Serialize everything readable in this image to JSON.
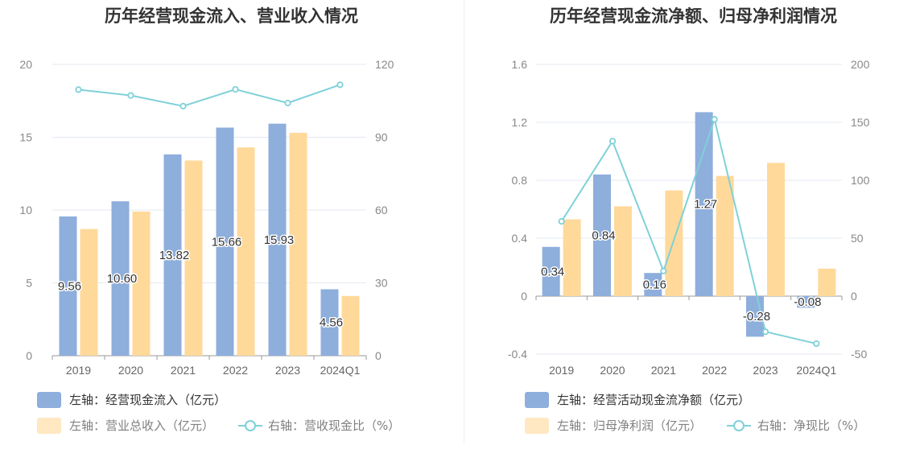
{
  "colors": {
    "bar_blue": "#8EAEDC",
    "bar_orange": "#FFD99A",
    "line_teal": "#7FD1D8",
    "grid": "#E3E8F2",
    "axis": "#999999"
  },
  "chart_data": [
    {
      "type": "bar",
      "title": "历年经营现金流入、营业收入情况",
      "categories": [
        "2019",
        "2020",
        "2021",
        "2022",
        "2023",
        "2024Q1"
      ],
      "left_axis": {
        "ticks": [
          "0",
          "5",
          "10",
          "15",
          "20"
        ],
        "ylim": [
          0,
          20
        ]
      },
      "right_axis": {
        "ticks": [
          "0",
          "30",
          "60",
          "90",
          "120"
        ],
        "ylim": [
          0,
          120
        ]
      },
      "series": [
        {
          "name": "左轴：经营现金流入（亿元）",
          "axis": "left",
          "type": "bar",
          "values": [
            9.56,
            10.6,
            13.82,
            15.66,
            15.93,
            4.56
          ],
          "labels": [
            "9.56",
            "10.60",
            "13.82",
            "15.66",
            "15.93",
            "4.56"
          ]
        },
        {
          "name": "左轴：营业总收入（亿元）",
          "axis": "left",
          "type": "bar",
          "values": [
            8.7,
            9.9,
            13.4,
            14.3,
            15.3,
            4.1
          ]
        },
        {
          "name": "右轴：营收现金比（%）",
          "axis": "right",
          "type": "line",
          "values": [
            109.6,
            107.2,
            102.8,
            109.7,
            104.1,
            111.6
          ]
        }
      ],
      "grid": true,
      "legend_placement": "bottom-left"
    },
    {
      "type": "bar",
      "title": "历年经营现金流净额、归母净利润情况",
      "categories": [
        "2019",
        "2020",
        "2021",
        "2022",
        "2023",
        "2024Q1"
      ],
      "left_axis": {
        "ticks": [
          "-0.4",
          "0",
          "0.4",
          "0.8",
          "1.2",
          "1.6"
        ],
        "ylim": [
          -0.4,
          1.6
        ]
      },
      "right_axis": {
        "ticks": [
          "-50",
          "0",
          "50",
          "100",
          "150",
          "200"
        ],
        "ylim": [
          -50,
          200
        ]
      },
      "series": [
        {
          "name": "左轴：经营活动现金流净额（亿元）",
          "axis": "left",
          "type": "bar",
          "values": [
            0.34,
            0.84,
            0.16,
            1.27,
            -0.28,
            -0.08
          ],
          "labels": [
            "0.34",
            "0.84",
            "0.16",
            "1.27",
            "-0.28",
            "-0.08"
          ]
        },
        {
          "name": "左轴：归母净利润（亿元）",
          "axis": "left",
          "type": "bar",
          "values": [
            0.53,
            0.62,
            0.73,
            0.83,
            0.92,
            0.19
          ]
        },
        {
          "name": "右轴：净现比（%）",
          "axis": "right",
          "type": "line",
          "values": [
            64.5,
            133.8,
            21.7,
            152.6,
            -30.7,
            -41.0
          ]
        }
      ],
      "grid": true,
      "legend_placement": "bottom-left"
    }
  ]
}
